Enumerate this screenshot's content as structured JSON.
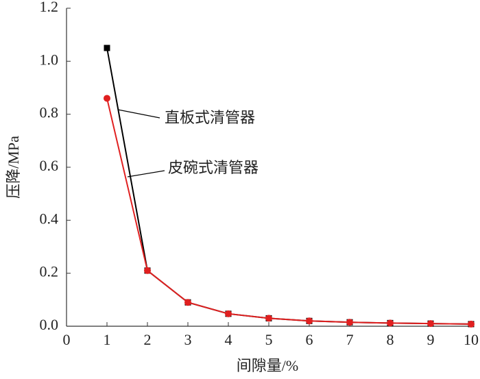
{
  "chart_data": {
    "type": "line",
    "xlabel": "间隙量/%",
    "ylabel": "压降/MPa",
    "x": [
      1,
      2,
      3,
      4,
      5,
      6,
      7,
      8,
      9,
      10
    ],
    "series": [
      {
        "name": "直板式清管器",
        "color": "#000000",
        "marker": "square",
        "values": [
          1.05,
          0.21,
          0.09,
          0.047,
          0.03,
          0.02,
          0.015,
          0.012,
          0.01,
          0.008
        ]
      },
      {
        "name": "皮碗式清管器",
        "color": "#e02020",
        "marker": "circle",
        "values": [
          0.86,
          0.21,
          0.09,
          0.047,
          0.03,
          0.02,
          0.015,
          0.012,
          0.01,
          0.008
        ]
      }
    ],
    "xlim": [
      0,
      10
    ],
    "xticks": [
      0,
      1,
      2,
      3,
      4,
      5,
      6,
      7,
      8,
      9,
      10
    ],
    "ylim": [
      0,
      1.2
    ],
    "yticks": [
      {
        "value": 0,
        "label": "0.0"
      },
      0.2,
      0.4,
      0.6,
      0.8,
      {
        "value": 1,
        "label": "1.0"
      },
      1.2
    ],
    "grid": false
  }
}
